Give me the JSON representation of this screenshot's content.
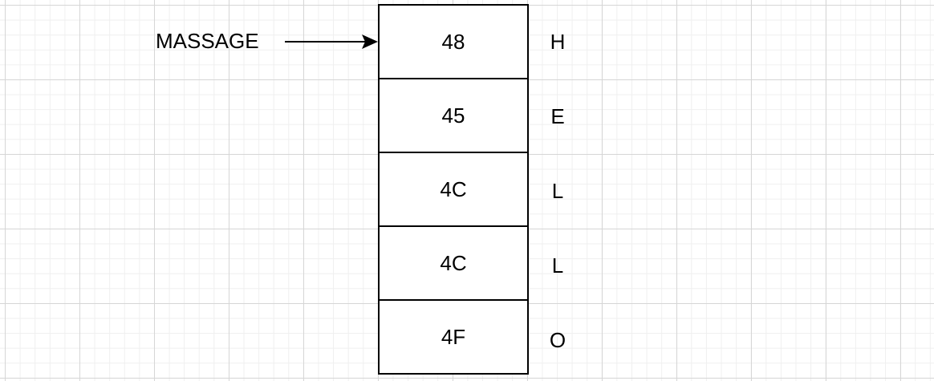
{
  "pointer": {
    "label": "MASSAGE"
  },
  "memory_cells": [
    {
      "hex": "48",
      "char": "H"
    },
    {
      "hex": "45",
      "char": "E"
    },
    {
      "hex": "4C",
      "char": "L"
    },
    {
      "hex": "4C",
      "char": "L"
    },
    {
      "hex": "4F",
      "char": "O"
    }
  ],
  "colors": {
    "stroke": "#000000",
    "grid_major": "#d6d6d6",
    "grid_minor": "#efefef",
    "background": "#ffffff"
  }
}
